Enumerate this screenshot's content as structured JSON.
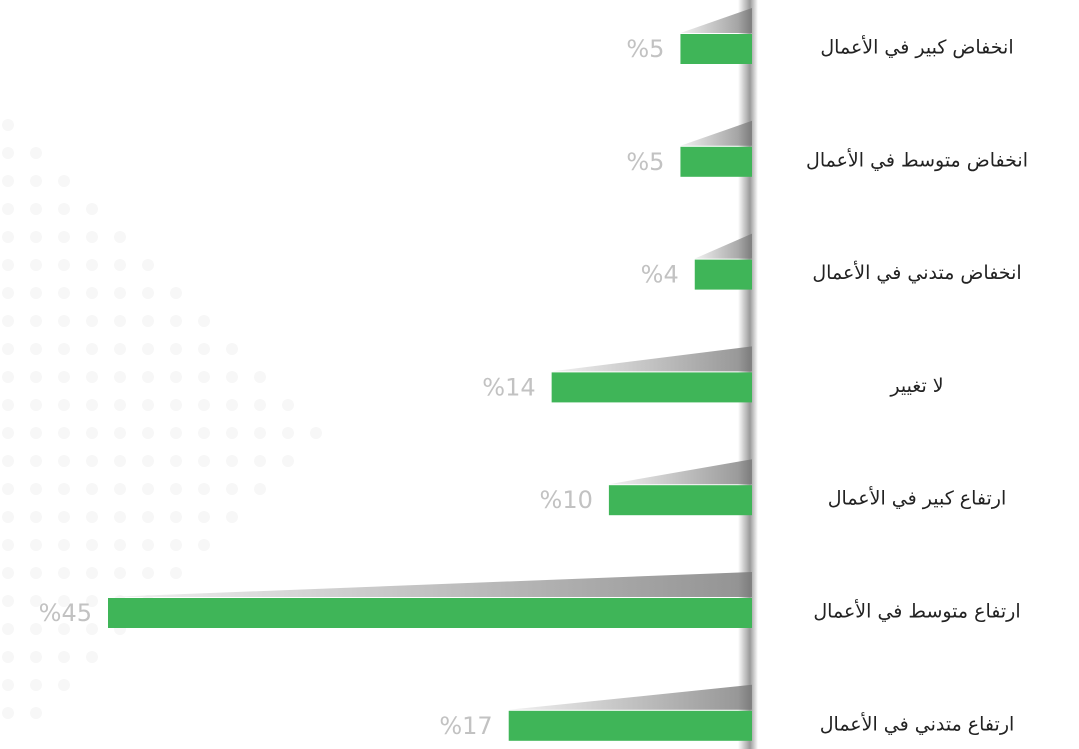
{
  "chart_data": {
    "type": "bar",
    "orientation": "horizontal",
    "categories": [
      "انخفاض كبير في الأعمال",
      "انخفاض متوسط في الأعمال",
      "انخفاض متدني في الأعمال",
      "لا تغيير",
      "ارتفاع كبير في الأعمال",
      "ارتفاع متوسط في الأعمال",
      "ارتفاع متدني في الأعمال"
    ],
    "values": [
      5,
      5,
      4,
      14,
      10,
      45,
      17
    ],
    "value_labels": [
      "%5",
      "%5",
      "%4",
      "%14",
      "%10",
      "%45",
      "%17"
    ],
    "color": "#3fb558"
  }
}
